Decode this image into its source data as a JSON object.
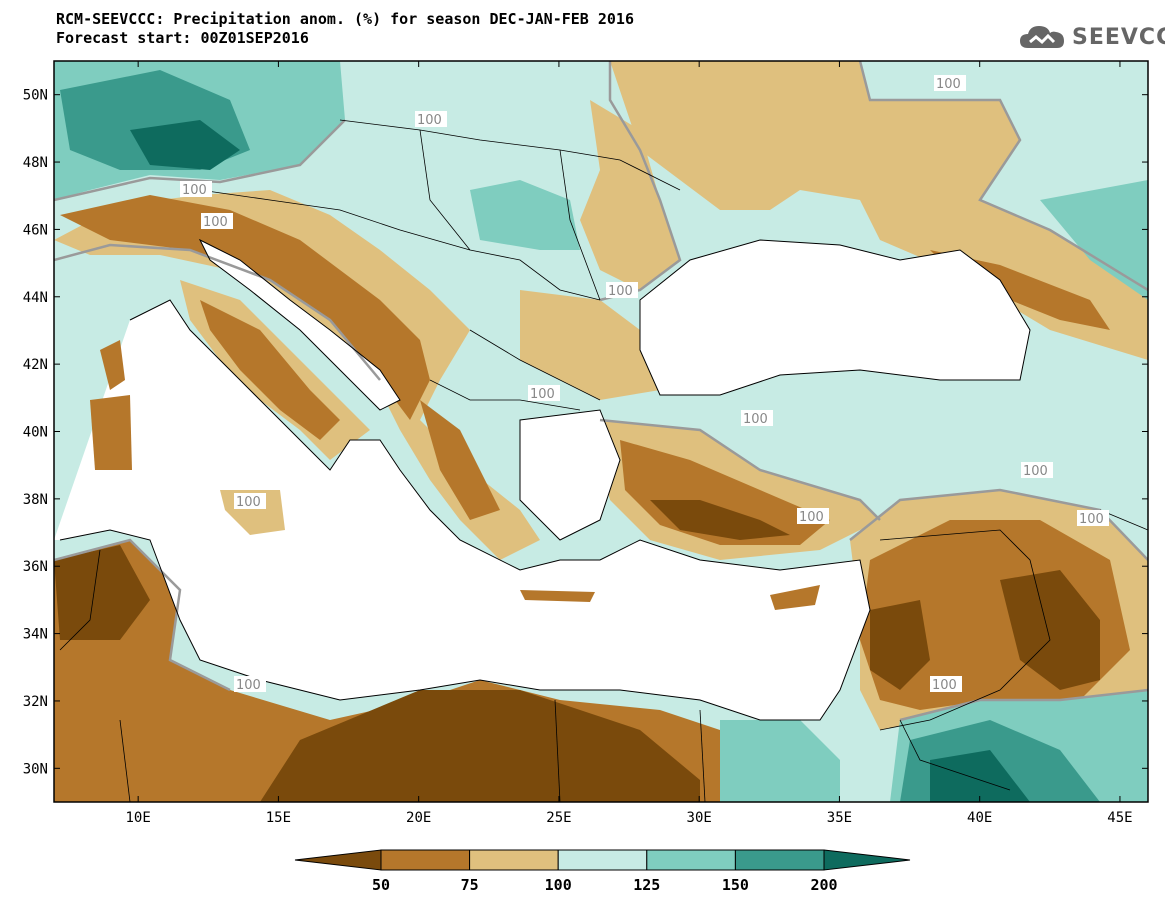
{
  "title": {
    "line1": "RCM-SEEVCCC: Precipitation anom. (%) for season DEC-JAN-FEB 2016",
    "line2": "Forecast start: 00Z01SEP2016"
  },
  "logo": {
    "text": "SEEVCCC",
    "icon": "cloud-icon"
  },
  "map": {
    "lon_range": [
      7,
      46
    ],
    "lat_range": [
      29,
      51
    ],
    "lat_ticks": [
      "50N",
      "48N",
      "46N",
      "44N",
      "42N",
      "40N",
      "38N",
      "36N",
      "34N",
      "32N",
      "30N"
    ],
    "lon_ticks": [
      "10E",
      "15E",
      "20E",
      "25E",
      "30E",
      "35E",
      "40E",
      "45E"
    ],
    "contour_label": "100"
  },
  "colorbar": {
    "levels": [
      "50",
      "75",
      "100",
      "125",
      "150",
      "200"
    ],
    "colors": [
      "#7a4a0c",
      "#b5772b",
      "#dfc07e",
      "#c7ebe4",
      "#7fcdbf",
      "#3a9a8c",
      "#0e6b5e"
    ],
    "land_sea": {
      "sea": "#ffffff",
      "border": "#000000",
      "contour": "#999999"
    }
  }
}
